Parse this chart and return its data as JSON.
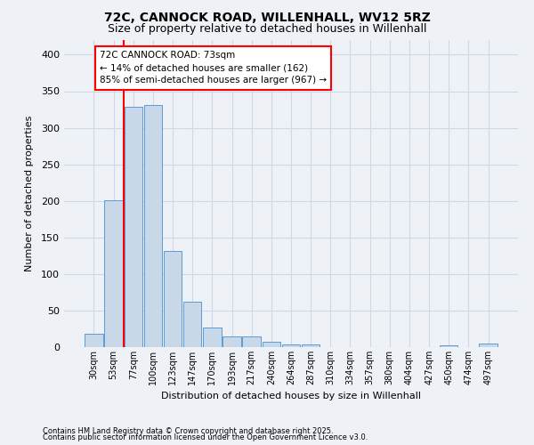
{
  "title": "72C, CANNOCK ROAD, WILLENHALL, WV12 5RZ",
  "subtitle": "Size of property relative to detached houses in Willenhall",
  "xlabel": "Distribution of detached houses by size in Willenhall",
  "ylabel": "Number of detached properties",
  "footnote1": "Contains HM Land Registry data © Crown copyright and database right 2025.",
  "footnote2": "Contains public sector information licensed under the Open Government Licence v3.0.",
  "bin_labels": [
    "30sqm",
    "53sqm",
    "77sqm",
    "100sqm",
    "123sqm",
    "147sqm",
    "170sqm",
    "193sqm",
    "217sqm",
    "240sqm",
    "264sqm",
    "287sqm",
    "310sqm",
    "334sqm",
    "357sqm",
    "380sqm",
    "404sqm",
    "427sqm",
    "450sqm",
    "474sqm",
    "497sqm"
  ],
  "bar_values": [
    18,
    201,
    329,
    331,
    131,
    62,
    27,
    15,
    15,
    7,
    4,
    4,
    0,
    0,
    0,
    0,
    0,
    0,
    3,
    0,
    5
  ],
  "bar_color": "#c8d8e8",
  "bar_edge_color": "#5b9bd5",
  "grid_color": "#d0d8e8",
  "vline_color": "red",
  "annotation_text": "72C CANNOCK ROAD: 73sqm\n← 14% of detached houses are smaller (162)\n85% of semi-detached houses are larger (967) →",
  "annotation_box_color": "white",
  "annotation_box_edge_color": "red",
  "ylim": [
    0,
    420
  ],
  "yticks": [
    0,
    50,
    100,
    150,
    200,
    250,
    300,
    350,
    400
  ],
  "bg_color": "#eef2f7",
  "title_fontsize": 10,
  "subtitle_fontsize": 9
}
